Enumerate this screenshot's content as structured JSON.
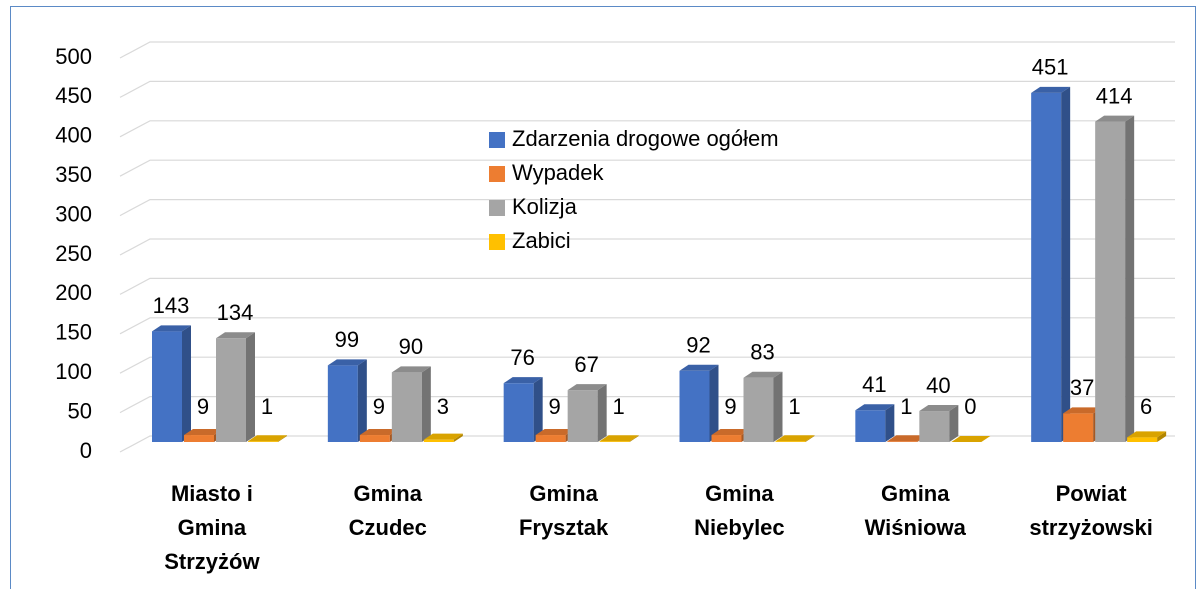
{
  "chart_data": {
    "type": "bar3d",
    "categories": [
      "Miasto i Gmina Strzyżów",
      "Gmina Czudec",
      "Gmina Frysztak",
      "Gmina Niebylec",
      "Gmina Wiśniowa",
      "Powiat strzyżowski"
    ],
    "series": [
      {
        "name": "Zdarzenia drogowe ogółem",
        "color": "#4472c4",
        "values": [
          143,
          99,
          76,
          92,
          41,
          451
        ]
      },
      {
        "name": "Wypadek",
        "color": "#ed7d31",
        "values": [
          9,
          9,
          9,
          9,
          1,
          37
        ]
      },
      {
        "name": "Kolizja",
        "color": "#a5a5a5",
        "values": [
          134,
          90,
          67,
          83,
          40,
          414
        ]
      },
      {
        "name": "Zabici",
        "color": "#ffc000",
        "values": [
          1,
          3,
          1,
          1,
          0,
          6
        ]
      }
    ],
    "ylim": [
      0,
      500
    ],
    "yticks": [
      0,
      50,
      100,
      150,
      200,
      250,
      300,
      350,
      400,
      450,
      500
    ],
    "grid": true,
    "legend": "inside"
  }
}
